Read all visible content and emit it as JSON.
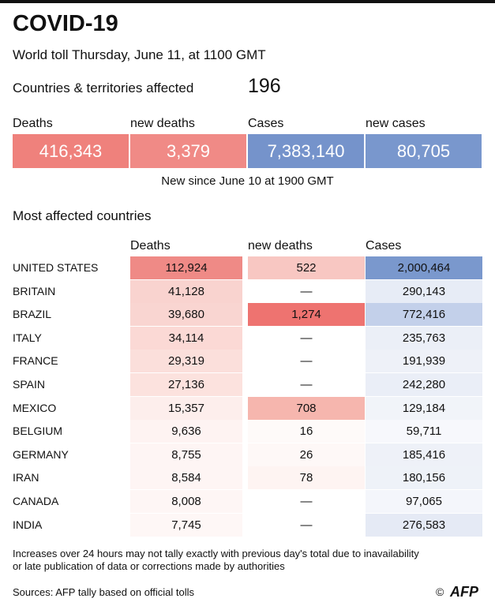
{
  "header": {
    "title": "COVID-19",
    "subtitle": "World toll Thursday, June 11, at 1100 GMT"
  },
  "summary": {
    "label": "Countries & territories affected",
    "value": "196"
  },
  "totals": {
    "headers": [
      "Deaths",
      "new deaths",
      "Cases",
      "new cases"
    ],
    "values": [
      "416,343",
      "3,379",
      "7,383,140",
      "80,705"
    ]
  },
  "note": "New since  June 10 at 1900 GMT",
  "section_title": "Most affected countries",
  "table": {
    "headers": [
      "Deaths",
      "new deaths",
      "Cases"
    ],
    "rows": [
      [
        "UNITED STATES",
        "112,924",
        "522",
        "2,000,464"
      ],
      [
        "BRITAIN",
        "41,128",
        "—",
        "290,143"
      ],
      [
        "BRAZIL",
        "39,680",
        "1,274",
        "772,416"
      ],
      [
        "ITALY",
        "34,114",
        "—",
        "235,763"
      ],
      [
        "FRANCE",
        "29,319",
        "—",
        "191,939"
      ],
      [
        "SPAIN",
        "27,136",
        "—",
        "242,280"
      ],
      [
        "MEXICO",
        "15,357",
        "708",
        "129,184"
      ],
      [
        "BELGIUM",
        "9,636",
        "16",
        "59,711"
      ],
      [
        "GERMANY",
        "8,755",
        "26",
        "185,416"
      ],
      [
        "IRAN",
        "8,584",
        "78",
        "180,156"
      ],
      [
        "CANADA",
        "8,008",
        "—",
        "97,065"
      ],
      [
        "INDIA",
        "7,745",
        "—",
        "276,583"
      ]
    ]
  },
  "footnote": [
    "Increases over 24 hours may not tally exactly with previous day's total due to inavailability",
    "or late publication of data or corrections made by authorities"
  ],
  "source": "Sources: AFP tally based on official tolls",
  "logo": "AFP"
}
